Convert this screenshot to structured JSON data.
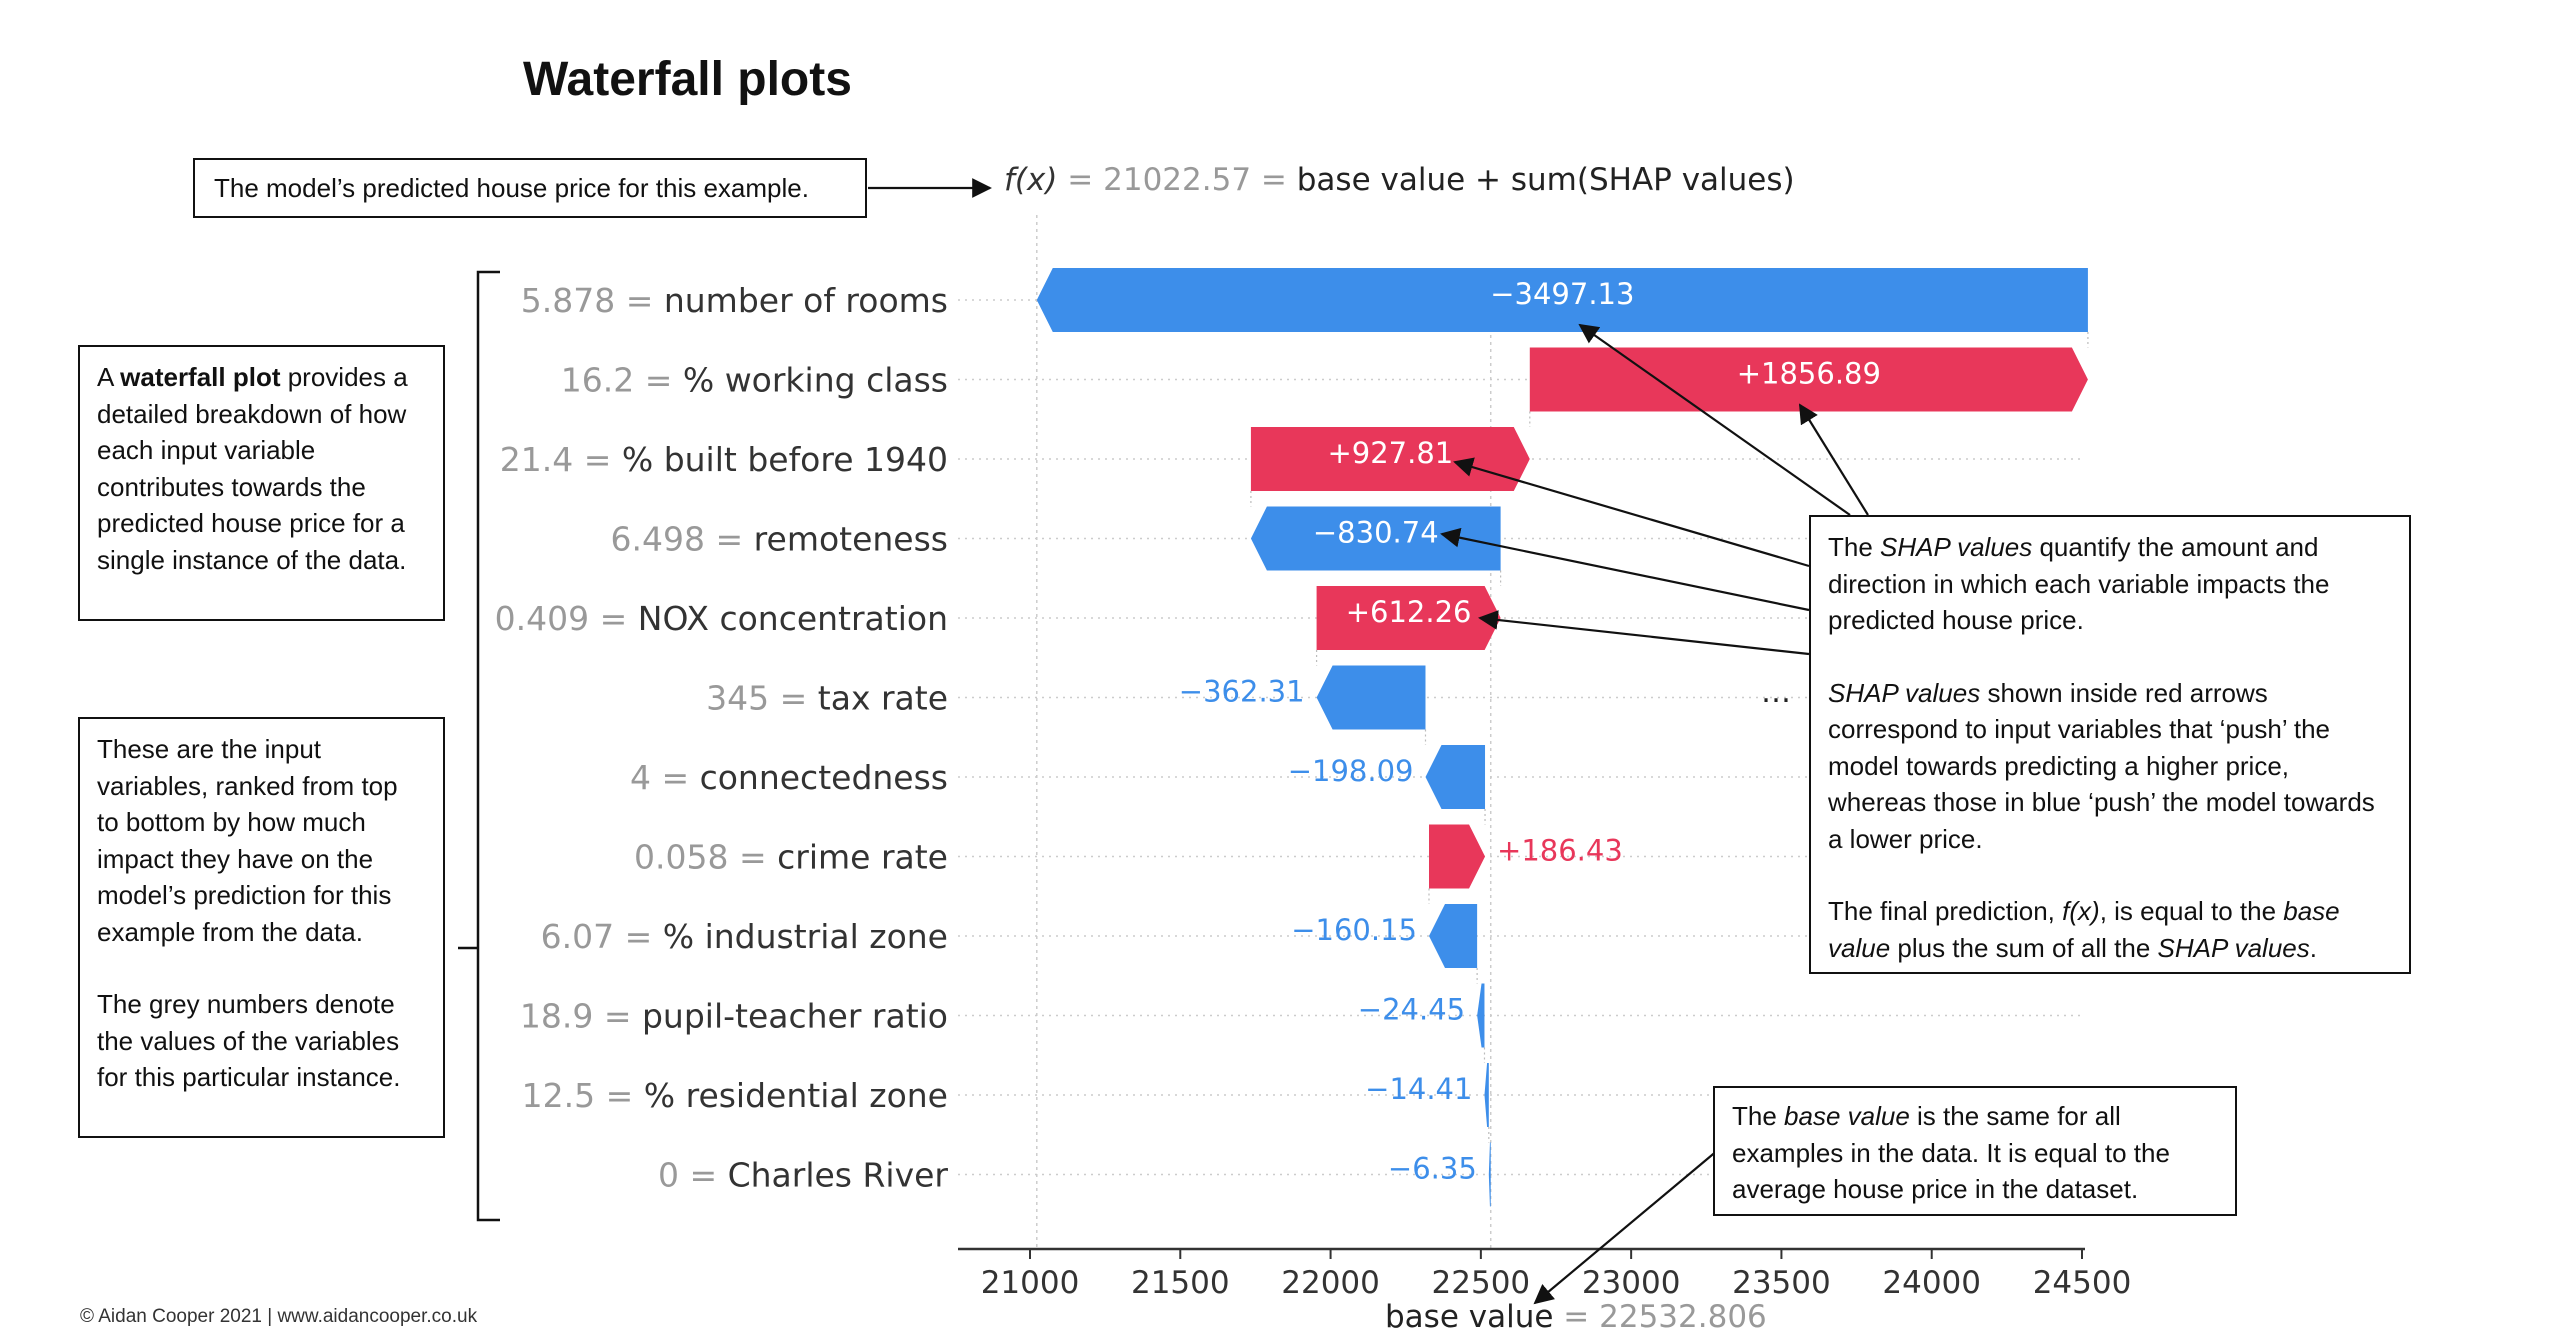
{
  "page": {
    "title": "Waterfall plots",
    "copyright": "© Aidan Cooper 2021 | www.aidancooper.co.uk"
  },
  "annotations": {
    "prediction_box": "The model’s predicted house price for this example.",
    "waterfall_box": {
      "pre": "A ",
      "bold": "waterfall plot",
      "post": " provides a detailed breakdown of how each input variable contributes towards the predicted house price for a single instance of the data."
    },
    "inputs_box": {
      "p1": "These are the input variables, ranked from top to bottom by how much impact they have on the model’s prediction for this example from the data.",
      "p2": "The grey numbers denote the values of the variables for this particular instance."
    },
    "shap_box": {
      "p1_pre": "The ",
      "p1_em": "SHAP values",
      "p1_post": " quantify the amount and direction in which each variable impacts the predicted house price.",
      "p2_em": "SHAP values",
      "p2_post": " shown inside red arrows correspond to input variables that ‘push’ the model towards predicting a higher price, whereas those in blue ‘push’ the model towards a lower price.",
      "p3_pre": "The final prediction, ",
      "p3_em1": "f(x)",
      "p3_mid": ", is equal to the ",
      "p3_em2": "base value",
      "p3_mid2": " plus the sum of all the ",
      "p3_em3": "SHAP values",
      "p3_post": "."
    },
    "base_box": {
      "pre": "The ",
      "em": "base value",
      "post": " is the same for all examples in the data. It is equal to the average house price in the dataset."
    }
  },
  "chart_data": {
    "type": "bar",
    "subtype": "waterfall",
    "fx": {
      "label": "f(x)",
      "eq": " = ",
      "value": "21022.57",
      "eq2": " = ",
      "formula": "base value + sum(SHAP values)"
    },
    "base": {
      "label": "base value",
      "eq": " = ",
      "value": "22532.806"
    },
    "xlim": [
      20800,
      24550
    ],
    "xticks": [
      "21000",
      "21500",
      "22000",
      "22500",
      "23000",
      "23500",
      "24000",
      "24500"
    ],
    "ellipsis": "…",
    "colors": {
      "positive": "#e8375a",
      "negative": "#3d8eea",
      "grey": "#999999"
    },
    "features": [
      {
        "value": "5.878",
        "name": "number of rooms",
        "start": 24519.7,
        "end": 21022.57,
        "label": "−3497.13",
        "sign": "neg",
        "label_inside": true
      },
      {
        "value": "16.2",
        "name": "% working class",
        "start": 22662.81,
        "end": 24519.7,
        "label": "+1856.89",
        "sign": "pos",
        "label_inside": true
      },
      {
        "value": "21.4",
        "name": "% built before 1940",
        "start": 21735.0,
        "end": 22662.81,
        "label": "+927.81",
        "sign": "pos",
        "label_inside": true
      },
      {
        "value": "6.498",
        "name": "remoteness",
        "start": 22565.74,
        "end": 21735.0,
        "label": "−830.74",
        "sign": "neg",
        "label_inside": true
      },
      {
        "value": "0.409",
        "name": "NOX concentration",
        "start": 21953.48,
        "end": 22565.74,
        "label": "+612.26",
        "sign": "pos",
        "label_inside": true
      },
      {
        "value": "345",
        "name": "tax rate",
        "start": 22315.79,
        "end": 21953.48,
        "label": "−362.31",
        "sign": "neg",
        "label_inside": false
      },
      {
        "value": "4",
        "name": "connectedness",
        "start": 22513.88,
        "end": 22315.79,
        "label": "−198.09",
        "sign": "neg",
        "label_inside": false
      },
      {
        "value": "0.058",
        "name": "crime rate",
        "start": 22327.45,
        "end": 22513.88,
        "label": "+186.43",
        "sign": "pos",
        "label_inside": false
      },
      {
        "value": "6.07",
        "name": "% industrial zone",
        "start": 22487.6,
        "end": 22327.45,
        "label": "−160.15",
        "sign": "neg",
        "label_inside": false
      },
      {
        "value": "18.9",
        "name": "pupil-teacher ratio",
        "start": 22512.05,
        "end": 22487.6,
        "label": "−24.45",
        "sign": "neg",
        "label_inside": false
      },
      {
        "value": "12.5",
        "name": "% residential zone",
        "start": 22526.46,
        "end": 22512.05,
        "label": "−14.41",
        "sign": "neg",
        "label_inside": false
      },
      {
        "value": "0",
        "name": "Charles River",
        "start": 22532.81,
        "end": 22526.46,
        "label": "−6.35",
        "sign": "neg",
        "label_inside": false
      }
    ]
  }
}
